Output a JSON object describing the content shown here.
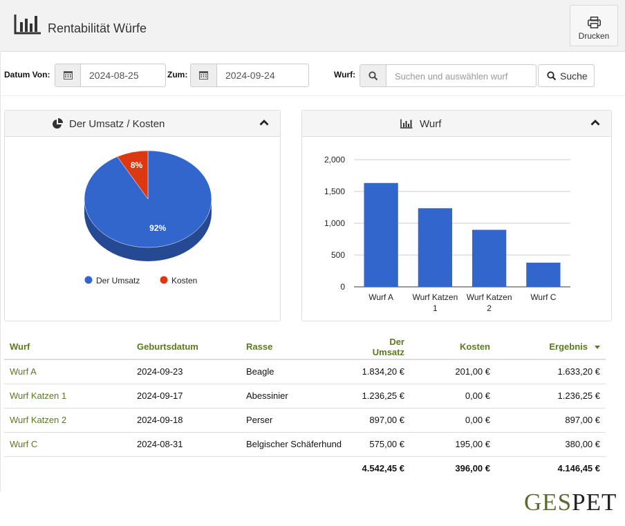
{
  "header": {
    "title": "Rentabilität Würfe",
    "title_icon": "bar-chart-icon",
    "print_label": "Drucken",
    "print_icon": "printer-icon"
  },
  "filters": {
    "date_from_label": "Datum Von:",
    "date_from_value": "2024-08-25",
    "date_to_label": "Zum:",
    "date_to_value": "2024-09-24",
    "litter_label": "Wurf:",
    "litter_placeholder": "Suchen und auswählen wurf",
    "search_label": "Suche",
    "calendar_icon": "calendar-icon",
    "search_icon": "search-icon"
  },
  "pie_panel": {
    "title": "Der Umsatz / Kosten",
    "icon": "pie-chart-icon",
    "collapse_icon": "chevron-up-icon"
  },
  "bar_panel": {
    "title": "Wurf",
    "icon": "bar-chart-icon",
    "collapse_icon": "chevron-up-icon"
  },
  "chart_data": [
    {
      "type": "pie",
      "labels": [
        "Der Umsatz",
        "Kosten"
      ],
      "values": [
        92,
        8
      ],
      "value_labels": [
        "92%",
        "8%"
      ],
      "colors": [
        "#3366cc",
        "#dc3912"
      ],
      "legend": "bottom"
    },
    {
      "type": "bar",
      "categories": [
        "Wurf A",
        "Wurf Katzen 1",
        "Wurf Katzen 2",
        "Wurf C"
      ],
      "category_lines": [
        [
          "Wurf A"
        ],
        [
          "Wurf Katzen",
          "1"
        ],
        [
          "Wurf Katzen",
          "2"
        ],
        [
          "Wurf C"
        ]
      ],
      "values": [
        1633.2,
        1236.25,
        897.0,
        380.0
      ],
      "ylim": [
        0,
        2000
      ],
      "yticks": [
        0,
        500,
        1000,
        1500,
        2000
      ],
      "ytick_labels": [
        "0",
        "500",
        "1,000",
        "1,500",
        "2,000"
      ],
      "color": "#3366cc",
      "grid": true,
      "legend": "none"
    }
  ],
  "table": {
    "columns": [
      "Wurf",
      "Geburtsdatum",
      "Rasse",
      "Der Umsatz",
      "Kosten",
      "Ergebnis"
    ],
    "rows": [
      [
        "Wurf A",
        "2024-09-23",
        "Beagle",
        "1.834,20 €",
        "201,00 €",
        "1.633,20 €"
      ],
      [
        "Wurf Katzen 1",
        "2024-09-17",
        "Abessinier",
        "1.236,25 €",
        "0,00 €",
        "1.236,25 €"
      ],
      [
        "Wurf Katzen 2",
        "2024-09-18",
        "Perser",
        "897,00 €",
        "0,00 €",
        "897,00 €"
      ],
      [
        "Wurf C",
        "2024-08-31",
        "Belgischer Schäferhund",
        "575,00 €",
        "195,00 €",
        "380,00 €"
      ]
    ],
    "totals": [
      "",
      "",
      "",
      "4.542,45 €",
      "396,00 €",
      "4.146,45 €"
    ]
  },
  "brand": {
    "part1": "GES",
    "part2": "PET",
    "colors": [
      "#5a6b2e",
      "#222222"
    ]
  }
}
